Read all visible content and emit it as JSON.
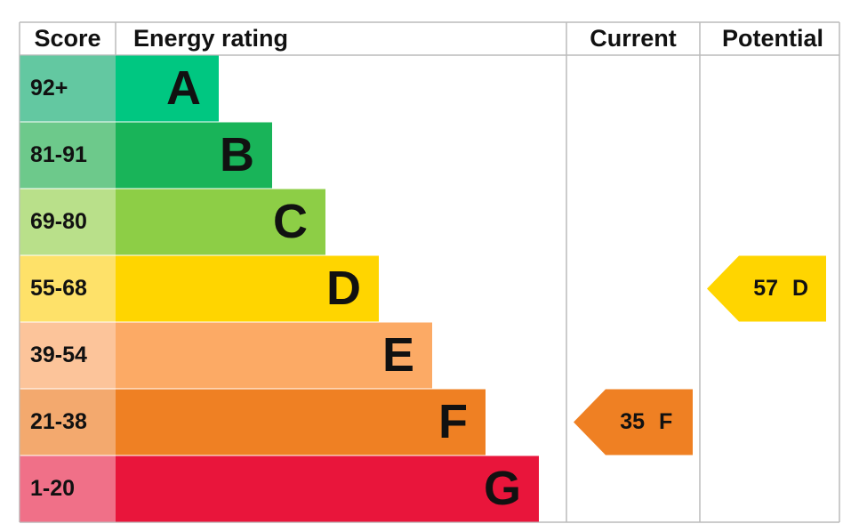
{
  "headers": {
    "score": "Score",
    "rating": "Energy rating",
    "current": "Current",
    "potential": "Potential"
  },
  "bands": [
    {
      "score": "92+",
      "letter": "A",
      "color": "#00c781",
      "score_color": "#63c8a1"
    },
    {
      "score": "81-91",
      "letter": "B",
      "color": "#19b459",
      "score_color": "#6dc98b"
    },
    {
      "score": "69-80",
      "letter": "C",
      "color": "#8dce46",
      "score_color": "#b9e08a"
    },
    {
      "score": "55-68",
      "letter": "D",
      "color": "#ffd500",
      "score_color": "#fee169"
    },
    {
      "score": "39-54",
      "letter": "E",
      "color": "#fcaa65",
      "score_color": "#fcc49a"
    },
    {
      "score": "21-38",
      "letter": "F",
      "color": "#ef8023",
      "score_color": "#f3a96e"
    },
    {
      "score": "1-20",
      "letter": "G",
      "color": "#e9153b",
      "score_color": "#f07088"
    }
  ],
  "current": {
    "value": 35,
    "letter": "F"
  },
  "potential": {
    "value": 57,
    "letter": "D"
  }
}
